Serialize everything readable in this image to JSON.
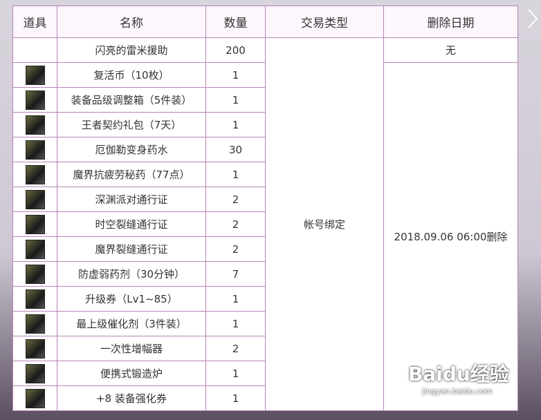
{
  "table": {
    "header": [
      "道具",
      "名称",
      "数量",
      "交易类型",
      "删除日期"
    ],
    "rows": [
      {
        "name": "闪亮的雷米援助",
        "count": 200,
        "icon": false
      },
      {
        "name": "复活币（10枚）",
        "count": 1,
        "icon": true
      },
      {
        "name": "装备品级调整箱（5件装）",
        "count": 1,
        "icon": true
      },
      {
        "name": "王者契约礼包（7天）",
        "count": 1,
        "icon": true
      },
      {
        "name": "厄伽勒变身药水",
        "count": 30,
        "icon": true
      },
      {
        "name": "魔界抗疲劳秘药（77点）",
        "count": 1,
        "icon": true
      },
      {
        "name": "深渊派对通行证",
        "count": 2,
        "icon": true
      },
      {
        "name": "时空裂缝通行证",
        "count": 2,
        "icon": true
      },
      {
        "name": "魔界裂缝通行证",
        "count": 2,
        "icon": true
      },
      {
        "name": "防虚弱药剂（30分钟）",
        "count": 7,
        "icon": true
      },
      {
        "name": "升级券（Lv1~85）",
        "count": 1,
        "icon": true
      },
      {
        "name": "最上级催化剂（3件装）",
        "count": 1,
        "icon": true
      },
      {
        "name": "一次性增幅器",
        "count": 2,
        "icon": true
      },
      {
        "name": "便携式锻造炉",
        "count": 1,
        "icon": true
      },
      {
        "name": "+8 装备强化券",
        "count": 1,
        "icon": true
      }
    ],
    "trade_type": "帐号绑定",
    "delete_dates": [
      "无",
      "2018.09.06 06:00删除"
    ]
  },
  "watermark": {
    "brand": "Baidu经验",
    "url": "jingyan.baidu.com"
  }
}
